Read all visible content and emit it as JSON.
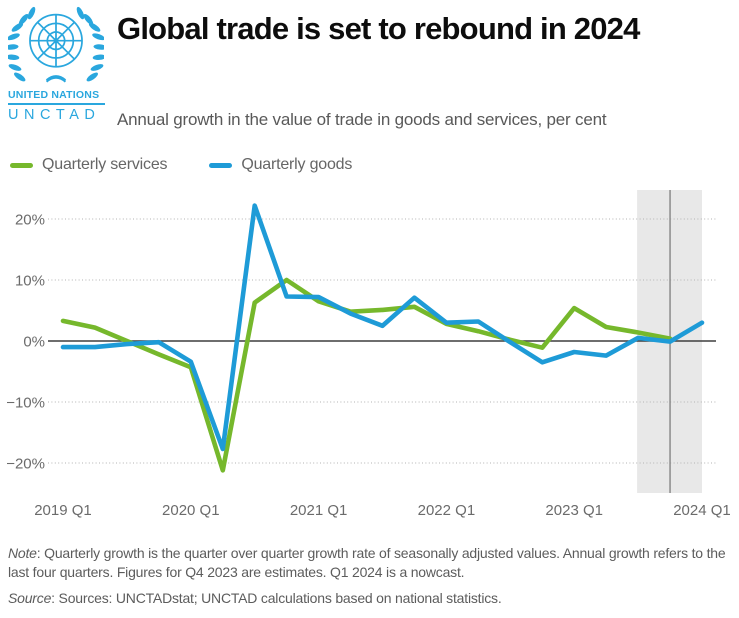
{
  "header": {
    "org_name": "UNITED NATIONS",
    "org_acronym": "UNCTAD",
    "title": "Global trade is set to rebound in 2024",
    "subtitle": "Annual growth in the value of trade in goods and services, per cent"
  },
  "legend": {
    "items": [
      {
        "label": "Quarterly services",
        "color": "#76b82c"
      },
      {
        "label": "Quarterly goods",
        "color": "#1e9bd7"
      }
    ]
  },
  "colors": {
    "services_green": "#76b82c",
    "goods_blue": "#1e9bd7",
    "un_blue": "#2aa7de",
    "grid_gray": "#b3b3b3",
    "zero_line": "#3f3f3f",
    "highlight_band": "#e8e8e8",
    "divider_line": "#8c8c8c"
  },
  "chart_data": {
    "type": "line",
    "title": "Global trade is set to rebound in 2024",
    "subtitle": "Annual growth in the value of trade in goods and services, per cent",
    "xlabel": "",
    "ylabel": "per cent",
    "grid": "horizontal-dotted",
    "legend_position": "top-left",
    "ylim": [
      -25,
      25
    ],
    "yticks": [
      20,
      10,
      0,
      -10,
      -20
    ],
    "ytick_labels": [
      "20%",
      "10%",
      "0%",
      "−10%",
      "−20%"
    ],
    "x_tick_every": 4,
    "categories": [
      "2019 Q1",
      "2019 Q2",
      "2019 Q3",
      "2019 Q4",
      "2020 Q1",
      "2020 Q2",
      "2020 Q3",
      "2020 Q4",
      "2021 Q1",
      "2021 Q2",
      "2021 Q3",
      "2021 Q4",
      "2022 Q1",
      "2022 Q2",
      "2022 Q3",
      "2022 Q4",
      "2023 Q1",
      "2023 Q2",
      "2023 Q3",
      "2023 Q4",
      "2024 Q1"
    ],
    "x_tick_labels": [
      "2019 Q1",
      "2020 Q1",
      "2021 Q1",
      "2022 Q1",
      "2023 Q1",
      "2024 Q1"
    ],
    "series": [
      {
        "name": "Quarterly services",
        "color": "#76b82c",
        "values": [
          3.3,
          2.2,
          0.0,
          -2.2,
          -4.3,
          -21.2,
          6.3,
          10.0,
          6.5,
          4.8,
          5.1,
          5.6,
          2.8,
          1.6,
          0.2,
          -1.1,
          5.4,
          2.3,
          1.4,
          0.4,
          null
        ]
      },
      {
        "name": "Quarterly goods",
        "color": "#1e9bd7",
        "values": [
          -1.0,
          -1.0,
          -0.5,
          -0.2,
          -3.4,
          -17.7,
          22.2,
          7.3,
          7.2,
          4.5,
          2.5,
          7.1,
          3.0,
          3.2,
          -0.2,
          -3.5,
          -1.8,
          -2.4,
          0.5,
          -0.1,
          3.0
        ]
      }
    ],
    "highlight_band": {
      "start_category": "2023 Q3",
      "end_category": "2024 Q1",
      "divider_category": "2023 Q4",
      "meaning": "Q4 2023 estimates / Q1 2024 nowcast"
    }
  },
  "footer": {
    "note_label": "Note",
    "note_text": ": Quarterly growth is the quarter over quarter growth rate of seasonally adjusted values. Annual growth refers to the last four quarters. Figures for Q4 2023 are estimates. Q1 2024 is a nowcast.",
    "source_label": "Source",
    "source_text": ": Sources: UNCTADstat; UNCTAD calculations based on national statistics."
  }
}
